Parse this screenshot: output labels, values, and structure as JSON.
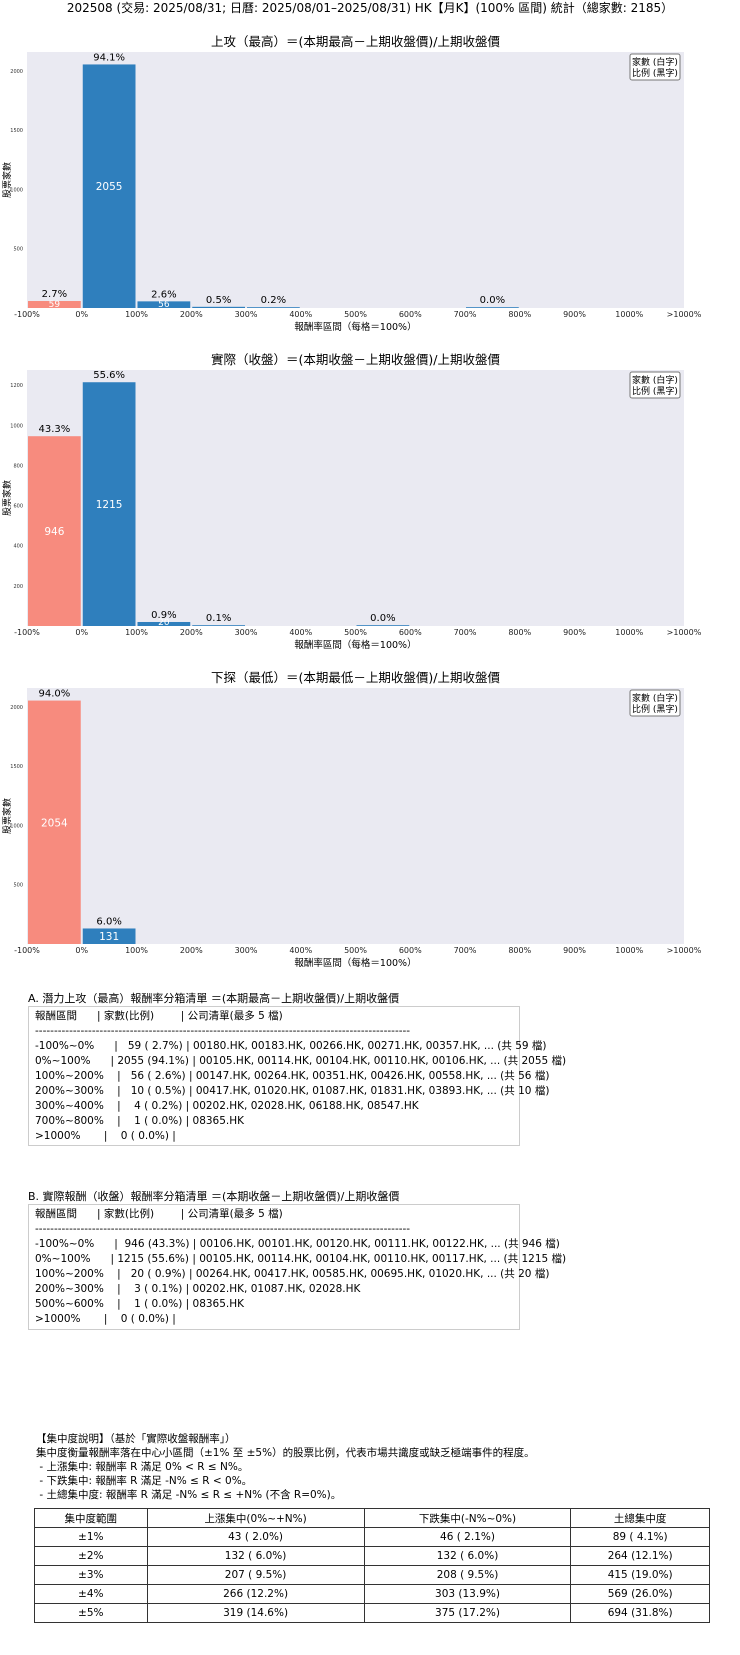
{
  "title": "202508 (交易: 2025/08/31; 日曆: 2025/08/01–2025/08/31) HK【月K】(100% 區間) 統計（總家數: 2185）",
  "chart_data": [
    {
      "type": "bar",
      "title": "上攻（最高）＝(本期最高－上期收盤價)/上期收盤價",
      "xlabel": "報酬率區間（每格＝100%）",
      "ylabel": "股票家數",
      "legend": [
        "家數 (白字)",
        "比例 (黑字)"
      ],
      "legend_position": "top-right",
      "grid": false,
      "x_ticks": [
        "-100%",
        "0%",
        "100%",
        "200%",
        "300%",
        "400%",
        "500%",
        "600%",
        "700%",
        "800%",
        "900%",
        "1000%",
        ">1000%"
      ],
      "y_ticks": [
        500,
        1000,
        1500,
        2000
      ],
      "ylim": [
        0,
        2160
      ],
      "bars": [
        {
          "bin": 0,
          "count": 59,
          "count_label": "59",
          "pct": "2.7%",
          "color": "#f78b7e"
        },
        {
          "bin": 1,
          "count": 2055,
          "count_label": "2055",
          "pct": "94.1%",
          "color": "#2f7fbd"
        },
        {
          "bin": 2,
          "count": 56,
          "count_label": "56",
          "pct": "2.6%",
          "color": "#2f7fbd"
        },
        {
          "bin": 3,
          "count": 10,
          "count_label": "10",
          "pct": "0.5%",
          "color": "#2f7fbd"
        },
        {
          "bin": 4,
          "count": 4,
          "count_label": "4",
          "pct": "0.2%",
          "color": "#2f7fbd"
        },
        {
          "bin": 8,
          "count": 1,
          "count_label": "1",
          "pct": "0.0%",
          "color": "#2f7fbd"
        }
      ]
    },
    {
      "type": "bar",
      "title": "實際（收盤）＝(本期收盤－上期收盤價)/上期收盤價",
      "xlabel": "報酬率區間（每格＝100%）",
      "ylabel": "股票家數",
      "legend": [
        "家數 (白字)",
        "比例 (黑字)"
      ],
      "legend_position": "top-right",
      "grid": false,
      "x_ticks": [
        "-100%",
        "0%",
        "100%",
        "200%",
        "300%",
        "400%",
        "500%",
        "600%",
        "700%",
        "800%",
        "900%",
        "1000%",
        ">1000%"
      ],
      "y_ticks": [
        200,
        400,
        600,
        800,
        1000,
        1200
      ],
      "ylim": [
        0,
        1276
      ],
      "bars": [
        {
          "bin": 0,
          "count": 946,
          "count_label": "946",
          "pct": "43.3%",
          "color": "#f78b7e"
        },
        {
          "bin": 1,
          "count": 1215,
          "count_label": "1215",
          "pct": "55.6%",
          "color": "#2f7fbd"
        },
        {
          "bin": 2,
          "count": 20,
          "count_label": "20",
          "pct": "0.9%",
          "color": "#2f7fbd"
        },
        {
          "bin": 3,
          "count": 3,
          "count_label": "3",
          "pct": "0.1%",
          "color": "#2f7fbd"
        },
        {
          "bin": 6,
          "count": 1,
          "count_label": "1",
          "pct": "0.0%",
          "color": "#2f7fbd"
        }
      ]
    },
    {
      "type": "bar",
      "title": "下探（最低）＝(本期最低－上期收盤價)/上期收盤價",
      "xlabel": "報酬率區間（每格＝100%）",
      "ylabel": "股票家數",
      "legend": [
        "家數 (白字)",
        "比例 (黑字)"
      ],
      "legend_position": "top-right",
      "grid": false,
      "x_ticks": [
        "-100%",
        "0%",
        "100%",
        "200%",
        "300%",
        "400%",
        "500%",
        "600%",
        "700%",
        "800%",
        "900%",
        "1000%",
        ">1000%"
      ],
      "y_ticks": [
        500,
        1000,
        1500,
        2000
      ],
      "ylim": [
        0,
        2160
      ],
      "bars": [
        {
          "bin": 0,
          "count": 2054,
          "count_label": "2054",
          "pct": "94.0%",
          "color": "#f78b7e"
        },
        {
          "bin": 1,
          "count": 131,
          "count_label": "131",
          "pct": "6.0%",
          "color": "#2f7fbd"
        }
      ]
    }
  ],
  "section_a": {
    "heading": "A. 潛力上攻（最高）報酬率分箱清單 ＝(本期最高－上期收盤價)/上期收盤價",
    "lines": [
      "報酬區間      | 家數(比例)        | 公司清單(最多 5 檔)",
      "---------------------------------------------------------------------------------------------------",
      "-100%~0%      |   59 ( 2.7%) | 00180.HK, 00183.HK, 00266.HK, 00271.HK, 00357.HK, ... (共 59 檔)",
      "0%~100%      | 2055 (94.1%) | 00105.HK, 00114.HK, 00104.HK, 00110.HK, 00106.HK, ... (共 2055 檔)",
      "100%~200%    |   56 ( 2.6%) | 00147.HK, 00264.HK, 00351.HK, 00426.HK, 00558.HK, ... (共 56 檔)",
      "200%~300%    |   10 ( 0.5%) | 00417.HK, 01020.HK, 01087.HK, 01831.HK, 03893.HK, ... (共 10 檔)",
      "300%~400%    |    4 ( 0.2%) | 00202.HK, 02028.HK, 06188.HK, 08547.HK",
      "700%~800%    |    1 ( 0.0%) | 08365.HK",
      ">1000%       |    0 ( 0.0%) |"
    ]
  },
  "section_b": {
    "heading": "B. 實際報酬（收盤）報酬率分箱清單 ＝(本期收盤－上期收盤價)/上期收盤價",
    "lines": [
      "報酬區間      | 家數(比例)        | 公司清單(最多 5 檔)",
      "---------------------------------------------------------------------------------------------------",
      "-100%~0%      |  946 (43.3%) | 00106.HK, 00101.HK, 00120.HK, 00111.HK, 00122.HK, ... (共 946 檔)",
      "0%~100%      | 1215 (55.6%) | 00105.HK, 00114.HK, 00104.HK, 00110.HK, 00117.HK, ... (共 1215 檔)",
      "100%~200%    |   20 ( 0.9%) | 00264.HK, 00417.HK, 00585.HK, 00695.HK, 01020.HK, ... (共 20 檔)",
      "200%~300%    |    3 ( 0.1%) | 00202.HK, 01087.HK, 02028.HK",
      "500%~600%    |    1 ( 0.0%) | 08365.HK",
      ">1000%       |    0 ( 0.0%) |"
    ]
  },
  "concentration": {
    "lines": [
      "【集中度說明】（基於「實際收盤報酬率」）",
      "集中度衡量報酬率落在中心小區間（±1% 至 ±5%）的股票比例，代表市場共識度或缺乏極端事件的程度。",
      " - 上漲集中: 報酬率 R 滿足 0% < R ≤ N%。",
      " - 下跌集中: 報酬率 R 滿足 -N% ≤ R < 0%。",
      " - 土總集中度: 報酬率 R 滿足 -N% ≤ R ≤ +N% (不含 R=0%)。"
    ],
    "headers": [
      "集中度範圍",
      "上漲集中(0%~+N%)",
      "下跌集中(-N%~0%)",
      "土總集中度"
    ],
    "rows": [
      [
        "±1%",
        "43 ( 2.0%)",
        "46 ( 2.1%)",
        "89 ( 4.1%)"
      ],
      [
        "±2%",
        "132 ( 6.0%)",
        "132 ( 6.0%)",
        "264 (12.1%)"
      ],
      [
        "±3%",
        "207 ( 9.5%)",
        "208 ( 9.5%)",
        "415 (19.0%)"
      ],
      [
        "±4%",
        "266 (12.2%)",
        "303 (13.9%)",
        "569 (26.0%)"
      ],
      [
        "±5%",
        "319 (14.6%)",
        "375 (17.2%)",
        "694 (31.8%)"
      ]
    ]
  }
}
